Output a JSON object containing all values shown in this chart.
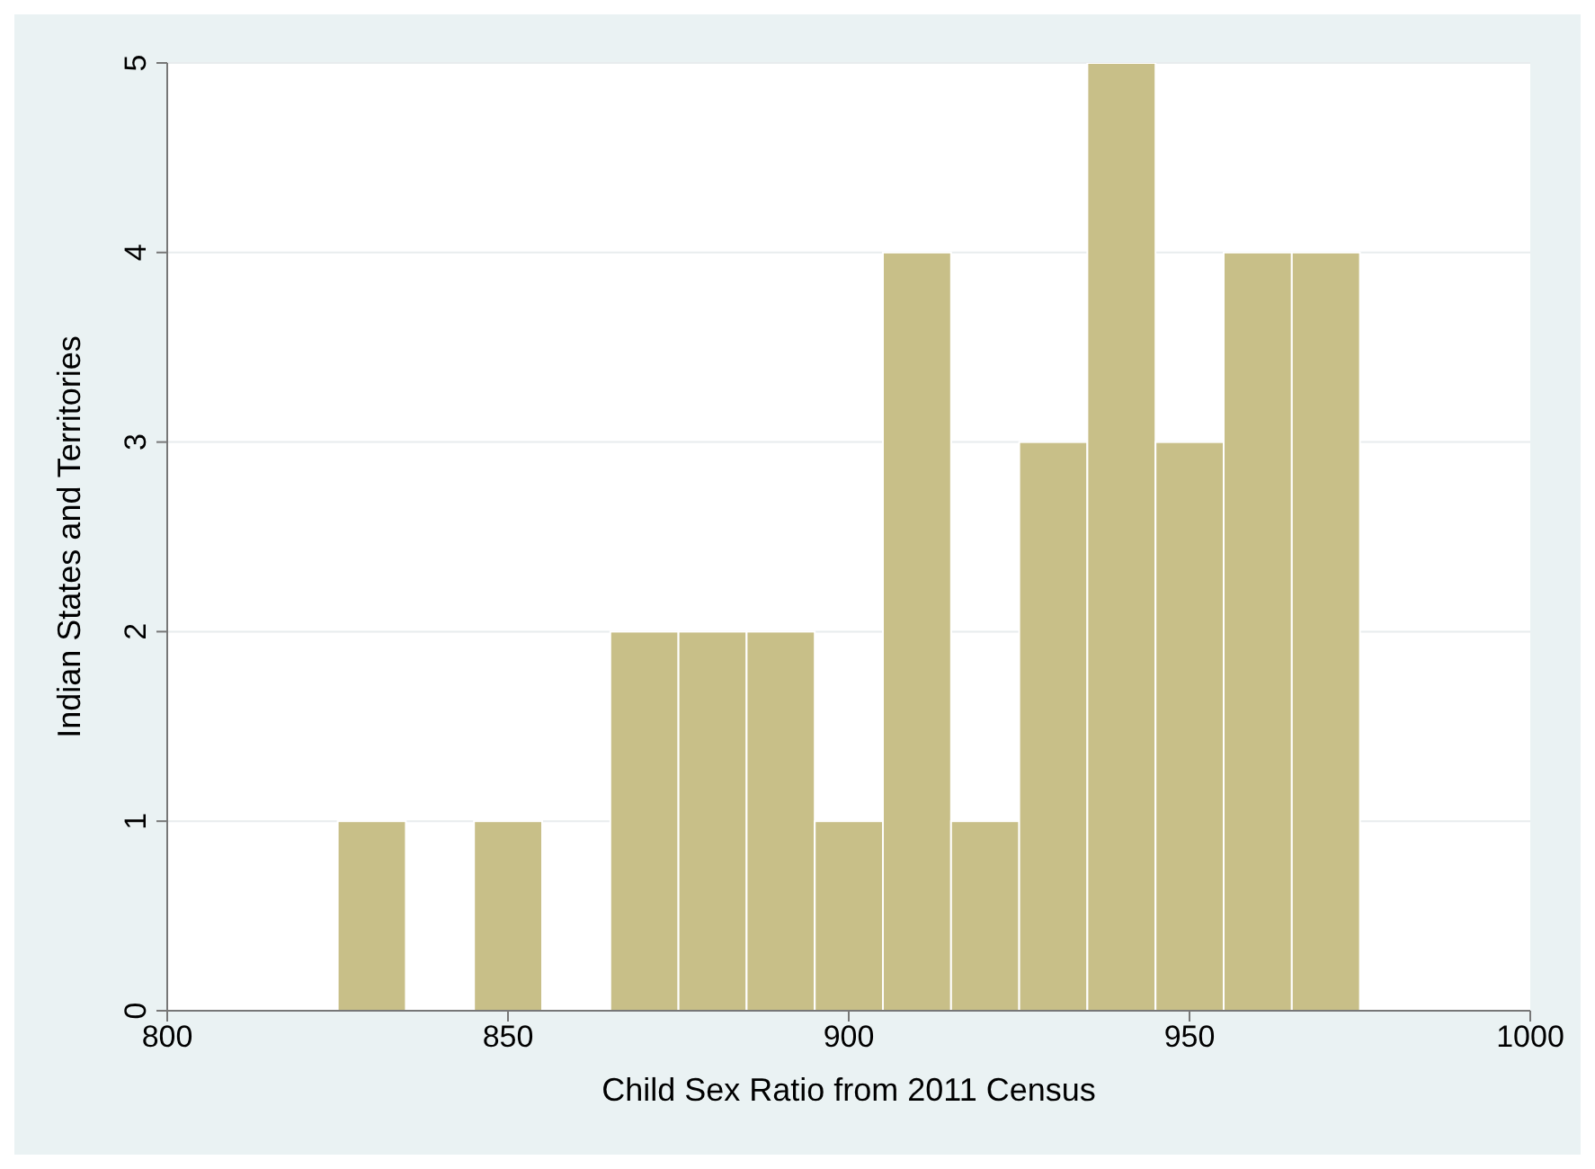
{
  "chart_data": {
    "type": "histogram",
    "xlabel": "Child Sex Ratio from 2011 Census",
    "ylabel": "Indian States and Territories",
    "bins": [
      825,
      835,
      845,
      855,
      865,
      875,
      885,
      895,
      905,
      915,
      925,
      935,
      945,
      955,
      965,
      975
    ],
    "values": [
      1,
      0,
      1,
      0,
      2,
      2,
      2,
      1,
      4,
      1,
      3,
      5,
      3,
      4,
      4
    ],
    "color": "#c8bf88",
    "xlim": [
      800,
      1000
    ],
    "xticks": [
      800,
      850,
      900,
      950,
      1000
    ],
    "ylim": [
      0,
      5
    ],
    "yticks": [
      0,
      1,
      2,
      3,
      4,
      5
    ],
    "grid": "y"
  }
}
